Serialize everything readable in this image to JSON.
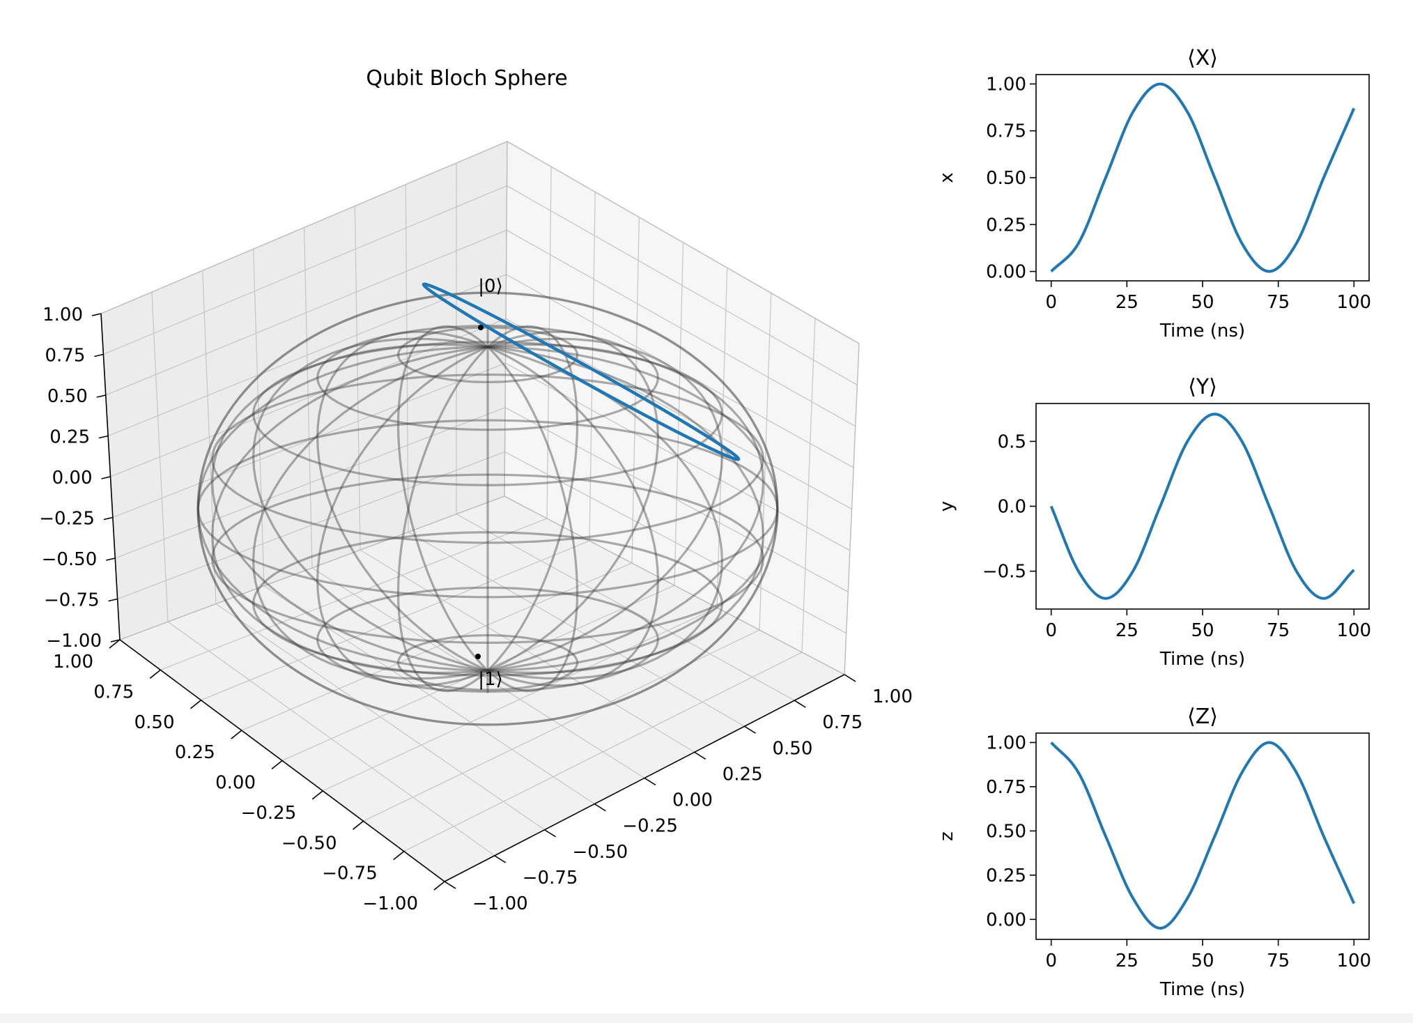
{
  "chart_data": [
    {
      "type": "scatter",
      "subtype": "3d-bloch-sphere",
      "title": "Qubit Bloch Sphere",
      "xlim": [
        -1.0,
        1.0
      ],
      "ylim": [
        -1.0,
        1.0
      ],
      "zlim": [
        -1.0,
        1.0
      ],
      "x_ticks": [
        "−1.00",
        "−0.75",
        "−0.50",
        "−0.25",
        "0.00",
        "0.25",
        "0.50",
        "0.75",
        "1.00"
      ],
      "y_ticks": [
        "1.00",
        "0.75",
        "0.50",
        "0.25",
        "0.00",
        "−0.25",
        "−0.50",
        "−0.75",
        "−1.00"
      ],
      "z_ticks": [
        "1.00",
        "0.75",
        "0.50",
        "0.25",
        "0.00",
        "−0.25",
        "−0.50",
        "−0.75",
        "−1.00"
      ],
      "pole_labels": {
        "north": "|0⟩",
        "south": "|1⟩"
      },
      "grid": true,
      "trajectory_color": "#1f77b4",
      "trajectory": "great-circle ring through |0⟩ with tilted rotation axis"
    },
    {
      "type": "line",
      "title": "⟨X⟩",
      "xlabel": "Time (ns)",
      "ylabel": "x",
      "xlim": [
        0,
        100
      ],
      "ylim": [
        0.0,
        1.0
      ],
      "x_ticks": [
        "0",
        "25",
        "50",
        "75",
        "100"
      ],
      "y_ticks": [
        "0.00",
        "0.25",
        "0.50",
        "0.75",
        "1.00"
      ],
      "x": [
        0,
        9,
        18,
        27,
        36,
        45,
        54,
        63,
        72,
        81,
        90,
        100
      ],
      "series": [
        {
          "values": [
            0.0,
            0.15,
            0.5,
            0.85,
            1.0,
            0.85,
            0.5,
            0.15,
            0.0,
            0.15,
            0.5,
            0.87
          ]
        }
      ],
      "color": "#1f77b4"
    },
    {
      "type": "line",
      "title": "⟨Y⟩",
      "xlabel": "Time (ns)",
      "ylabel": "y",
      "xlim": [
        0,
        100
      ],
      "ylim": [
        -0.72,
        0.72
      ],
      "x_ticks": [
        "0",
        "25",
        "50",
        "75",
        "100"
      ],
      "y_ticks": [
        "−0.5",
        "0.0",
        "0.5"
      ],
      "x": [
        0,
        9,
        18,
        27,
        36,
        45,
        54,
        63,
        72,
        81,
        90,
        100
      ],
      "series": [
        {
          "values": [
            0.0,
            -0.5,
            -0.71,
            -0.5,
            0.0,
            0.5,
            0.71,
            0.5,
            0.0,
            -0.5,
            -0.71,
            -0.49
          ]
        }
      ],
      "color": "#1f77b4"
    },
    {
      "type": "line",
      "title": "⟨Z⟩",
      "xlabel": "Time (ns)",
      "ylabel": "z",
      "xlim": [
        0,
        100
      ],
      "ylim": [
        -0.06,
        1.0
      ],
      "x_ticks": [
        "0",
        "25",
        "50",
        "75",
        "100"
      ],
      "y_ticks": [
        "0.00",
        "0.25",
        "0.50",
        "0.75",
        "1.00"
      ],
      "x": [
        0,
        9,
        18,
        27,
        36,
        45,
        54,
        63,
        72,
        81,
        90,
        100
      ],
      "series": [
        {
          "values": [
            1.0,
            0.83,
            0.47,
            0.12,
            -0.05,
            0.12,
            0.47,
            0.83,
            1.0,
            0.83,
            0.47,
            0.09
          ]
        }
      ],
      "color": "#1f77b4"
    }
  ]
}
